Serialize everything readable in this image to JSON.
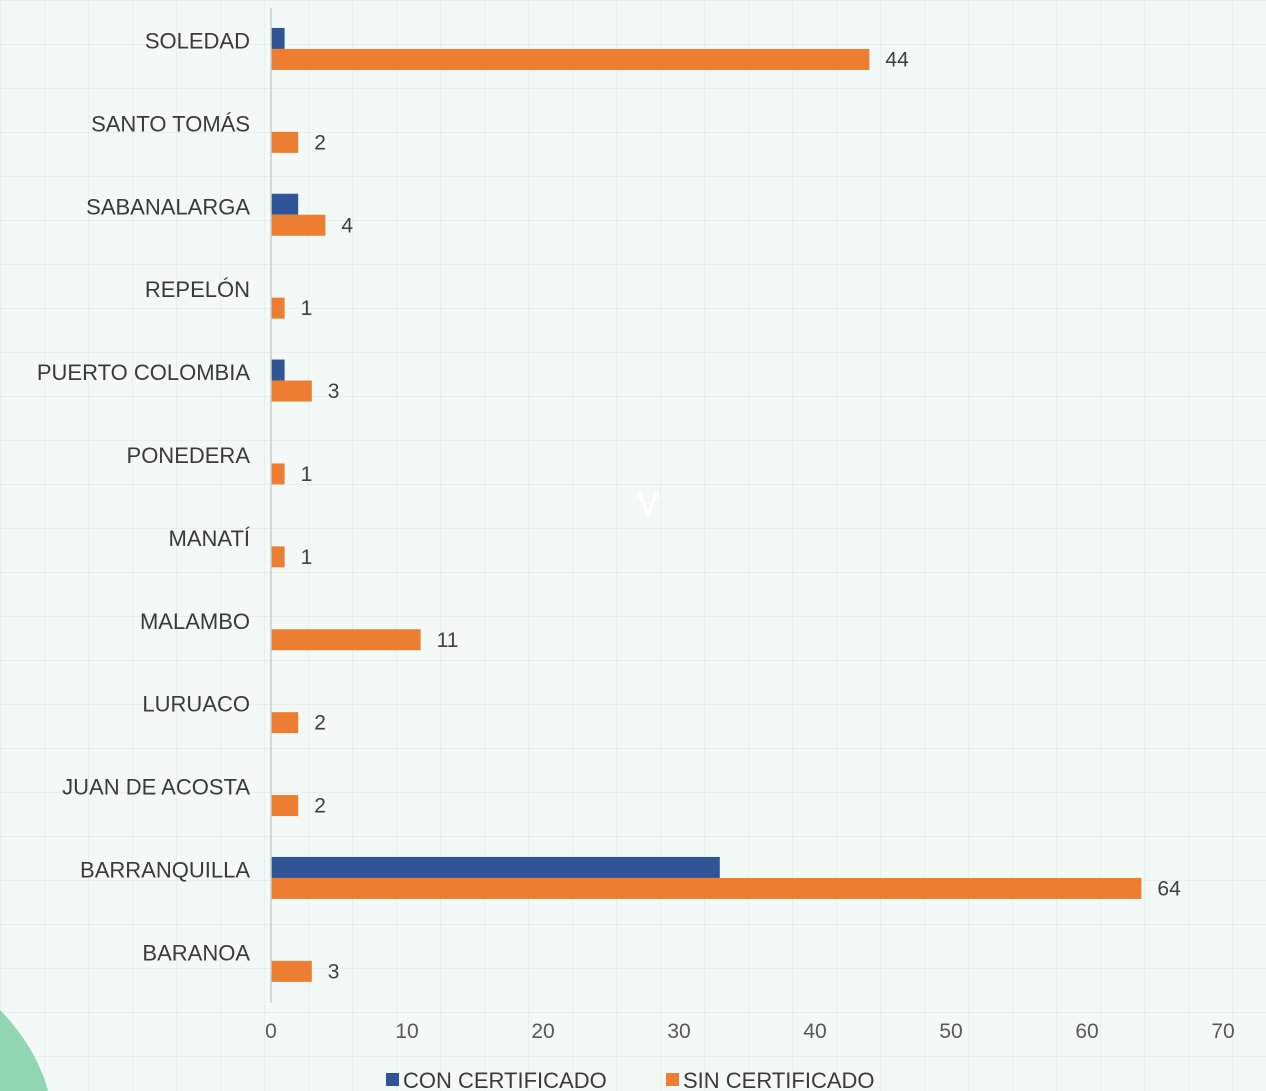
{
  "chart_data": {
    "type": "bar",
    "orientation": "horizontal",
    "categories": [
      "SOLEDAD",
      "SANTO TOMÁS",
      "SABANALARGA",
      "REPELÓN",
      "PUERTO COLOMBIA",
      "PONEDERA",
      "MANATÍ",
      "MALAMBO",
      "LURUACO",
      "JUAN DE ACOSTA",
      "BARRANQUILLA",
      "BARANOA"
    ],
    "series": [
      {
        "name": "CON CERTIFICADO",
        "color": "#2f5597",
        "values": [
          1,
          0,
          2,
          0,
          1,
          0,
          0,
          0,
          0,
          0,
          33,
          0
        ],
        "show_labels": false
      },
      {
        "name": "SIN CERTIFICADO",
        "color": "#ed7d31",
        "values": [
          44,
          2,
          4,
          1,
          3,
          1,
          1,
          11,
          2,
          2,
          64,
          3
        ],
        "show_labels": true
      }
    ],
    "x_ticks": [
      "0",
      "10",
      "20",
      "30",
      "40",
      "50",
      "60",
      "70"
    ],
    "xlim": [
      0,
      70
    ],
    "legend_position": "bottom",
    "grid": false,
    "watermark": "V"
  }
}
